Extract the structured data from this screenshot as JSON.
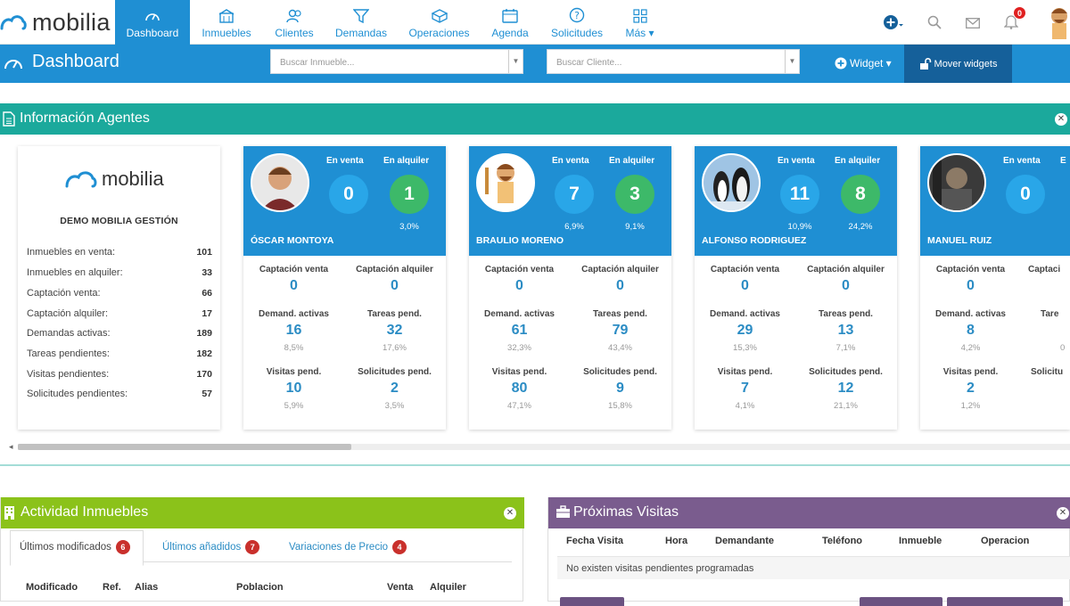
{
  "brand": {
    "name": "mobilia"
  },
  "nav": {
    "items": [
      {
        "label": "Dashboard",
        "icon": "gauge-icon"
      },
      {
        "label": "Inmuebles",
        "icon": "building-icon"
      },
      {
        "label": "Clientes",
        "icon": "users-icon"
      },
      {
        "label": "Demandas",
        "icon": "funnel-icon"
      },
      {
        "label": "Operaciones",
        "icon": "cube-icon"
      },
      {
        "label": "Agenda",
        "icon": "calendar-icon"
      },
      {
        "label": "Solicitudes",
        "icon": "question-icon"
      },
      {
        "label": "Más ▾",
        "icon": "grid-icon"
      }
    ],
    "notifications_count": "0"
  },
  "toolbar": {
    "title": "Dashboard",
    "search_inmueble_placeholder": "Buscar Inmueble...",
    "search_cliente_placeholder": "Buscar Cliente...",
    "widget_label": "Widget ▾",
    "mover_label": "Mover widgets"
  },
  "agents_panel": {
    "title": "Información Agentes",
    "company": {
      "name": "DEMO MOBILIA GESTIÓN",
      "stats": [
        {
          "label": "Inmuebles en venta:",
          "value": "101"
        },
        {
          "label": "Inmuebles en alquiler:",
          "value": "33"
        },
        {
          "label": "Captación venta:",
          "value": "66"
        },
        {
          "label": "Captación alquiler:",
          "value": "17"
        },
        {
          "label": "Demandas activas:",
          "value": "189"
        },
        {
          "label": "Tareas pendientes:",
          "value": "182"
        },
        {
          "label": "Visitas pendientes:",
          "value": "170"
        },
        {
          "label": "Solicitudes pendientes:",
          "value": "57"
        }
      ]
    },
    "labels": {
      "en_venta": "En venta",
      "en_alquiler": "En alquiler",
      "captacion_venta": "Captación venta",
      "captacion_alquiler": "Captación alquiler",
      "demandas_activas": "Demand. activas",
      "tareas_pend": "Tareas pend.",
      "visitas_pend": "Visitas pend.",
      "solicitudes_pend": "Solicitudes pend."
    },
    "agents": [
      {
        "name": "ÓSCAR MONTOYA",
        "venta": "0",
        "alquiler": "1",
        "venta_pct": "",
        "alquiler_pct": "3,0%",
        "captacion_venta": "0",
        "captacion_alquiler": "0",
        "demandas": "16",
        "demandas_pct": "8,5%",
        "tareas": "32",
        "tareas_pct": "17,6%",
        "visitas": "10",
        "visitas_pct": "5,9%",
        "solicitudes": "2",
        "solicitudes_pct": "3,5%"
      },
      {
        "name": "BRAULIO MORENO",
        "venta": "7",
        "alquiler": "3",
        "venta_pct": "6,9%",
        "alquiler_pct": "9,1%",
        "captacion_venta": "0",
        "captacion_alquiler": "0",
        "demandas": "61",
        "demandas_pct": "32,3%",
        "tareas": "79",
        "tareas_pct": "43,4%",
        "visitas": "80",
        "visitas_pct": "47,1%",
        "solicitudes": "9",
        "solicitudes_pct": "15,8%"
      },
      {
        "name": "ALFONSO RODRIGUEZ",
        "venta": "11",
        "alquiler": "8",
        "venta_pct": "10,9%",
        "alquiler_pct": "24,2%",
        "captacion_venta": "0",
        "captacion_alquiler": "0",
        "demandas": "29",
        "demandas_pct": "15,3%",
        "tareas": "13",
        "tareas_pct": "7,1%",
        "visitas": "7",
        "visitas_pct": "4,1%",
        "solicitudes": "12",
        "solicitudes_pct": "21,1%"
      },
      {
        "name": "MANUEL RUIZ",
        "venta": "0",
        "alquiler": "",
        "venta_pct": "",
        "alquiler_pct": "",
        "captacion_venta": "0",
        "captacion_alquiler": "",
        "demandas": "8",
        "demandas_pct": "4,2%",
        "tareas": "",
        "tareas_pct": "",
        "visitas": "2",
        "visitas_pct": "1,2%",
        "solicitudes": "",
        "solicitudes_pct": ""
      }
    ],
    "partial_labels": {
      "e": "E",
      "captac": "Captaci",
      "tare": "Tare",
      "solicit": "Solicitu",
      "zero": "0"
    }
  },
  "actividad_panel": {
    "title": "Actividad Inmuebles",
    "tabs": [
      {
        "label": "Últimos modificados",
        "count": "6"
      },
      {
        "label": "Últimos añadidos",
        "count": "7"
      },
      {
        "label": "Variaciones de Precio",
        "count": "4"
      }
    ],
    "columns": [
      "Modificado",
      "Ref.",
      "Alias",
      "Poblacion",
      "Venta",
      "Alquiler"
    ]
  },
  "visitas_panel": {
    "title": "Próximas Visitas",
    "columns": [
      "Fecha Visita",
      "Hora",
      "Demandante",
      "Teléfono",
      "Inmueble",
      "Operacion"
    ],
    "empty_message": "No existen visitas pendientes programadas"
  },
  "colors": {
    "primary": "#1f8fd3",
    "teal": "#1ba99c",
    "green": "#8bc21a",
    "purple": "#7a5c8e"
  }
}
